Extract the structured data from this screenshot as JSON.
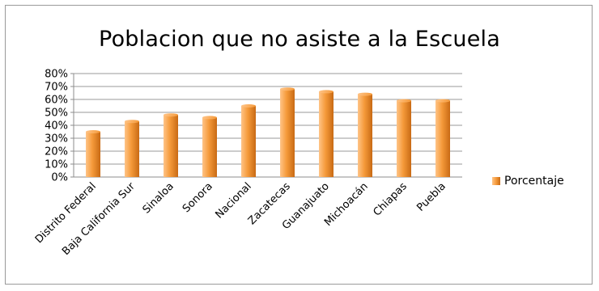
{
  "colors": {
    "bar_light": "#ffc487",
    "bar_mid": "#f59a3a",
    "bar_dark": "#c86a14",
    "grid": "#9a9a9a",
    "axis": "#8c8c8c",
    "frame": "#9a9a9a"
  },
  "chart_data": {
    "type": "bar",
    "title": "Poblacion que no asiste a la Escuela",
    "xlabel": "",
    "ylabel": "",
    "categories": [
      "Distrito Federal",
      "Baja California Sur",
      "Sinaloa",
      "Sonora",
      "Nacional",
      "Zacatecas",
      "Guanajuato",
      "Michoacán",
      "Chiapas",
      "Puebla"
    ],
    "series": [
      {
        "name": "Porcentaje",
        "values": [
          35,
          43,
          48,
          46,
          55,
          68,
          66,
          64,
          59,
          59
        ]
      }
    ],
    "ylim": [
      0,
      80
    ],
    "yticks": [
      "0%",
      "10%",
      "20%",
      "30%",
      "40%",
      "50%",
      "60%",
      "70%",
      "80%"
    ],
    "grid": true,
    "legend_position": "right"
  }
}
